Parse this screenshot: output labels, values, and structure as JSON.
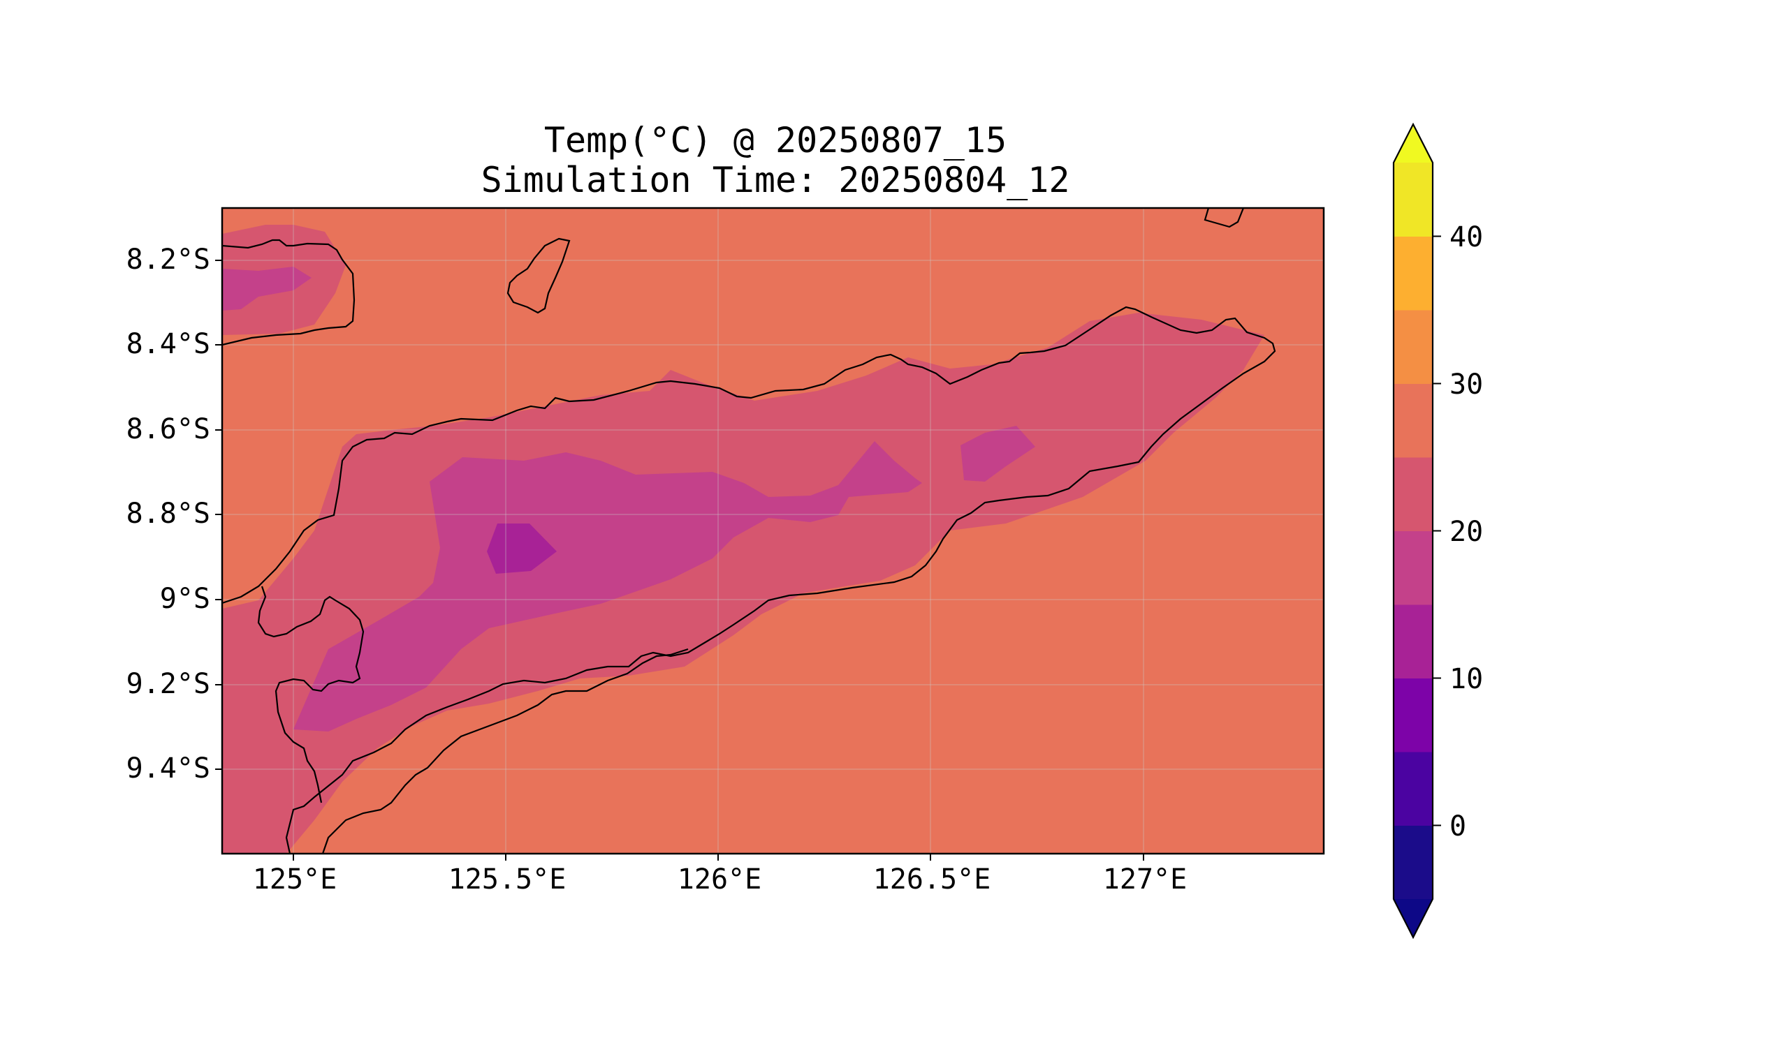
{
  "title": "Temp(°C) @ 20250807_15",
  "subtitle": "Simulation Time: 20250804_12",
  "map": {
    "lat_labels": [
      "8.2°S",
      "8.4°S",
      "8.6°S",
      "8.8°S",
      "9°S",
      "9.2°S",
      "9.4°S"
    ],
    "lon_labels": [
      "125°E",
      "125.5°E",
      "126°E",
      "126.5°E",
      "127°E"
    ],
    "extent": {
      "lon_min": 124.83,
      "lon_max": 127.42,
      "lat_min": -9.6,
      "lat_max": -8.08
    }
  },
  "colorbar": {
    "tick_labels": [
      "0",
      "10",
      "20",
      "30",
      "40"
    ],
    "levels": [
      -5,
      0,
      5,
      10,
      15,
      20,
      25,
      30,
      35,
      40,
      45
    ],
    "colors": [
      "#1b0c8a",
      "#4b03a1",
      "#7d03a8",
      "#a82296",
      "#c4418a",
      "#d6566f",
      "#e8735a",
      "#f48f44",
      "#fdaf30",
      "#f0e626"
    ],
    "under_color": "#0d0887",
    "over_color": "#f0f921",
    "extend": "both"
  },
  "field_colors": {
    "ocean_background": "#e8735a",
    "land_20_25": "#d6566f",
    "land_15_20": "#c4418a",
    "land_10_15": "#a82296"
  }
}
